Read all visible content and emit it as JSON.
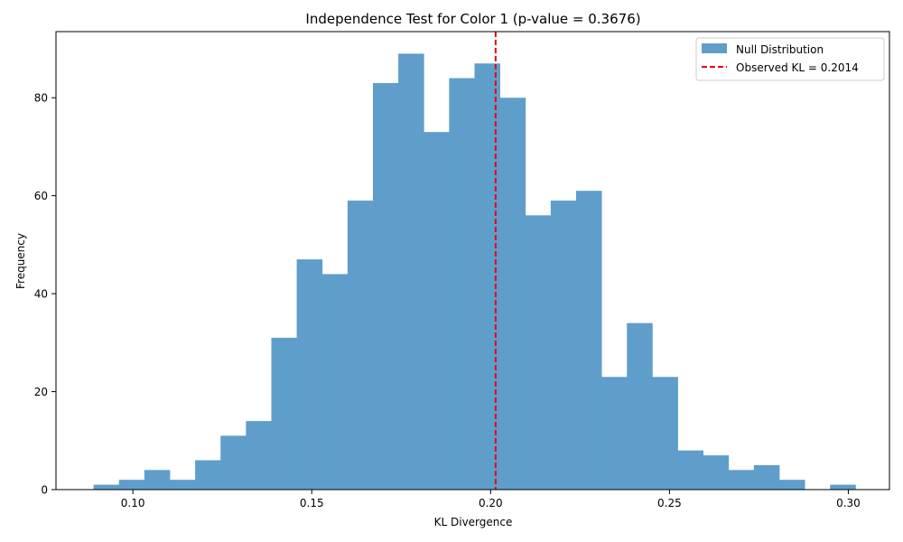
{
  "chart_data": {
    "type": "bar",
    "title": "Independence Test for Color 1 (p-value = 0.3676)",
    "xlabel": "KL Divergence",
    "ylabel": "Frequency",
    "xlim": [
      0.0785,
      0.3115
    ],
    "ylim": [
      0,
      93.5
    ],
    "x_ticks": [
      0.1,
      0.15,
      0.2,
      0.25,
      0.3
    ],
    "x_tick_labels": [
      "0.10",
      "0.15",
      "0.20",
      "0.25",
      "0.30"
    ],
    "y_ticks": [
      0,
      20,
      40,
      60,
      80
    ],
    "y_tick_labels": [
      "0",
      "20",
      "40",
      "60",
      "80"
    ],
    "bin_edges": [
      0.089,
      0.0961,
      0.1032,
      0.1103,
      0.1174,
      0.1245,
      0.1316,
      0.1387,
      0.1458,
      0.1529,
      0.16,
      0.1671,
      0.1742,
      0.1813,
      0.1884,
      0.1955,
      0.2026,
      0.2097,
      0.2168,
      0.2239,
      0.231,
      0.2381,
      0.2452,
      0.2523,
      0.2594,
      0.2665,
      0.2736,
      0.2807,
      0.2878,
      0.2949,
      0.302
    ],
    "series": [
      {
        "name": "Null Distribution",
        "color": "#5f9ecb",
        "values": [
          1,
          2,
          4,
          2,
          6,
          11,
          14,
          31,
          47,
          44,
          59,
          83,
          89,
          73,
          84,
          87,
          80,
          56,
          59,
          61,
          23,
          34,
          23,
          8,
          7,
          4,
          5,
          2,
          0,
          1
        ]
      }
    ],
    "observed_line": {
      "label": "Observed KL = 0.2014",
      "x": 0.2014,
      "color": "#e8000b",
      "style": "dashed"
    },
    "legend": {
      "placement": "top-right",
      "entries": [
        "Null Distribution",
        "Observed KL = 0.2014"
      ]
    },
    "grid": false
  }
}
